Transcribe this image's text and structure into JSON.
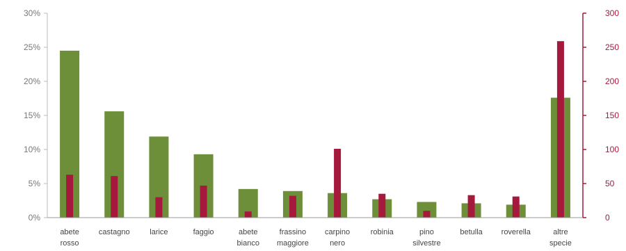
{
  "chart_data": {
    "type": "bar",
    "categories": [
      [
        "abete",
        "rosso"
      ],
      [
        "castagno"
      ],
      [
        "larice"
      ],
      [
        "faggio"
      ],
      [
        "abete",
        "bianco"
      ],
      [
        "frassino",
        "maggiore"
      ],
      [
        "carpino",
        "nero"
      ],
      [
        "robinia"
      ],
      [
        "pino",
        "silvestre"
      ],
      [
        "betulla"
      ],
      [
        "roverella"
      ],
      [
        "altre",
        "specie"
      ]
    ],
    "series": [
      {
        "axis": "left",
        "color": "#6e8f3a",
        "values": [
          24.5,
          15.6,
          11.9,
          9.3,
          4.2,
          3.9,
          3.6,
          2.7,
          2.3,
          2.1,
          1.9,
          17.6
        ]
      },
      {
        "axis": "right",
        "color": "#a5193d",
        "values": [
          63,
          61,
          30,
          47,
          9,
          32,
          101,
          35,
          10,
          33,
          31,
          259
        ]
      }
    ],
    "y_left": {
      "ticks": [
        "0%",
        "5%",
        "10%",
        "15%",
        "20%",
        "25%",
        "30%"
      ],
      "min": 0,
      "max": 30
    },
    "y_right": {
      "ticks": [
        "0",
        "50",
        "100",
        "150",
        "200",
        "250",
        "300"
      ],
      "min": 0,
      "max": 300
    },
    "grid": false,
    "legend": "none"
  }
}
